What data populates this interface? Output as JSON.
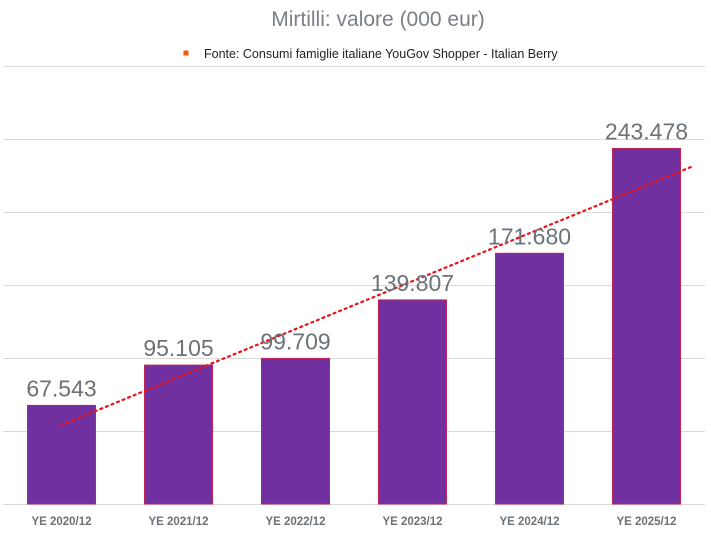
{
  "chart_data": {
    "type": "bar",
    "title": "Mirtilli: valore (000 eur)",
    "legend": {
      "label": "Fonte: Consumi famiglie italiane YouGov Shopper - Italian Berry",
      "position": "top"
    },
    "categories": [
      "YE 2020/12",
      "YE 2021/12",
      "YE 2022/12",
      "YE 2023/12",
      "YE 2024/12",
      "YE 2025/12"
    ],
    "values": [
      67543,
      95105,
      99709,
      139807,
      171680,
      243478
    ],
    "data_labels": [
      "67.543",
      "95.105",
      "99.709",
      "139.807",
      "171.680",
      "243.478"
    ],
    "ylim": [
      0,
      300000
    ],
    "ytick_step": 50000,
    "xlabel": "",
    "ylabel": "",
    "grid": true,
    "trendline": {
      "type": "linear",
      "style": "dotted"
    }
  },
  "colors": {
    "bar_fill": "#7030a0",
    "bar_outline": "#c0235a",
    "trendline": "#e8141c",
    "legend_marker": "#f05a14",
    "gridline": "#d9d9d9",
    "text": "#6b7278"
  }
}
